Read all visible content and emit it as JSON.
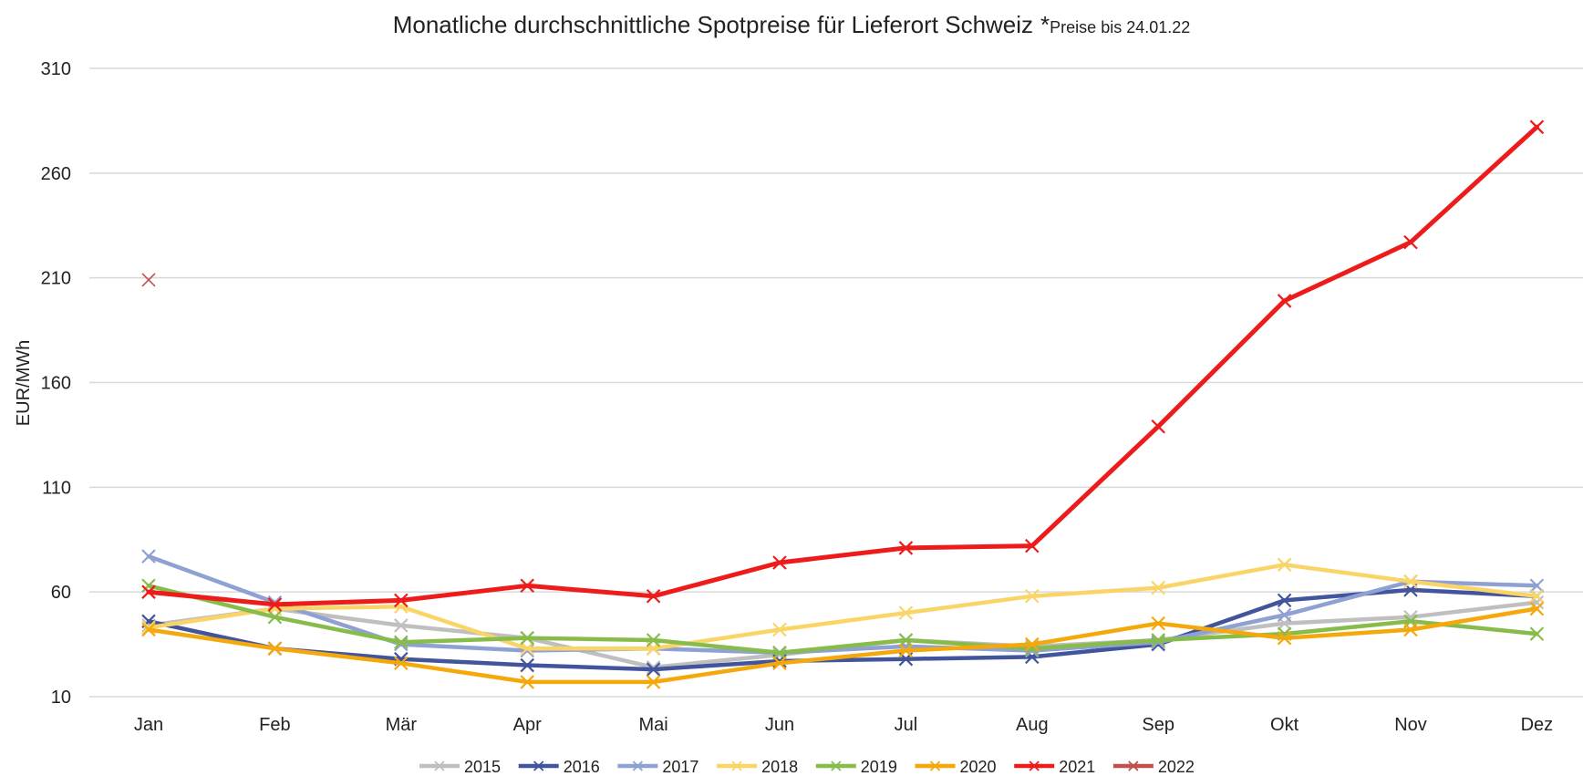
{
  "chart_data": {
    "type": "line",
    "title": "Monatliche durchschnittliche Spotpreise für Lieferort Schweiz",
    "subtitle_prefix": "*",
    "subtitle": "Preise bis 24.01.22",
    "xlabel": "",
    "ylabel": "EUR/MWh",
    "categories": [
      "Jan",
      "Feb",
      "Mär",
      "Apr",
      "Mai",
      "Jun",
      "Jul",
      "Aug",
      "Sep",
      "Okt",
      "Nov",
      "Dez"
    ],
    "ylim": [
      10,
      310
    ],
    "yticks": [
      10,
      60,
      110,
      160,
      210,
      260,
      310
    ],
    "grid": true,
    "legend_position": "bottom",
    "series": [
      {
        "name": "2015",
        "color": "#bfbfbf",
        "values": [
          44,
          52,
          44,
          38,
          24,
          30,
          37,
          34,
          37,
          45,
          48,
          55
        ]
      },
      {
        "name": "2016",
        "color": "#41549c",
        "values": [
          46,
          33,
          28,
          25,
          23,
          27,
          28,
          29,
          35,
          56,
          61,
          58
        ]
      },
      {
        "name": "2017",
        "color": "#8fa1d2",
        "values": [
          77,
          55,
          35,
          32,
          33,
          31,
          34,
          32,
          36,
          49,
          65,
          63
        ]
      },
      {
        "name": "2018",
        "color": "#f9d568",
        "values": [
          43,
          52,
          53,
          33,
          33,
          42,
          50,
          58,
          62,
          73,
          65,
          58
        ]
      },
      {
        "name": "2019",
        "color": "#88bc4a",
        "values": [
          63,
          48,
          36,
          38,
          37,
          31,
          37,
          33,
          37,
          40,
          46,
          40
        ]
      },
      {
        "name": "2020",
        "color": "#f4a80c",
        "values": [
          42,
          33,
          26,
          17,
          17,
          26,
          32,
          35,
          45,
          38,
          42,
          52
        ]
      },
      {
        "name": "2021",
        "color": "#ee1b1b",
        "values": [
          60,
          54,
          56,
          63,
          58,
          74,
          81,
          82,
          139,
          199,
          227,
          282
        ]
      },
      {
        "name": "2022",
        "color": "#c0504d",
        "values": [
          209,
          null,
          null,
          null,
          null,
          null,
          null,
          null,
          null,
          null,
          null,
          null
        ]
      }
    ]
  }
}
